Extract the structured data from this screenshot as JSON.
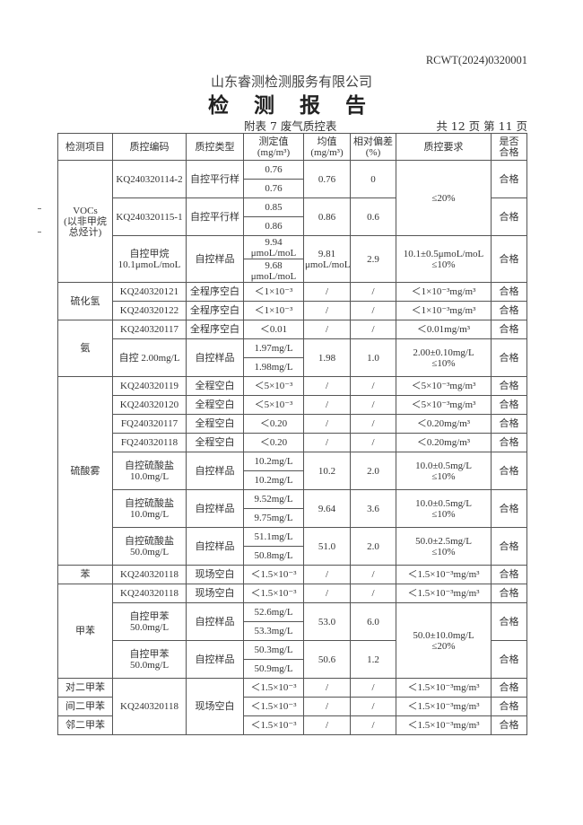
{
  "header": {
    "doc_number": "RCWT(2024)0320001",
    "company": "山东睿测检测服务有限公司",
    "title": "检 测 报 告",
    "subtitle": "附表 7  废气质控表",
    "page_info": "共 12 页    第 11 页"
  },
  "table": {
    "columns": [
      "检测项目",
      "质控编码",
      "质控类型",
      "测定值\n(mg/m³)",
      "均值\n(mg/m³)",
      "相对偏差\n(%)",
      "质控要求",
      "是否\n合格"
    ],
    "rows": [
      [
        {
          "t": "VOCs\n(以非甲烷\n总烃计)",
          "rs": 6
        },
        {
          "t": "KQ240320114-2",
          "rs": 2
        },
        {
          "t": "自控平行样",
          "rs": 2
        },
        {
          "t": "0.76"
        },
        {
          "t": "0.76",
          "rs": 2
        },
        {
          "t": "0",
          "rs": 2
        },
        {
          "t": "≤20%",
          "rs": 4
        },
        {
          "t": "合格",
          "rs": 2
        }
      ],
      [
        {
          "t": "0.76"
        }
      ],
      [
        {
          "t": "KQ240320115-1",
          "rs": 2
        },
        {
          "t": "自控平行样",
          "rs": 2
        },
        {
          "t": "0.85"
        },
        {
          "t": "0.86",
          "rs": 2
        },
        {
          "t": "0.6",
          "rs": 2
        },
        {
          "t": "合格",
          "rs": 2
        }
      ],
      [
        {
          "t": "0.86"
        }
      ],
      [
        {
          "t": "自控甲烷\n10.1μmoL/moL",
          "rs": 2
        },
        {
          "t": "自控样品",
          "rs": 2
        },
        {
          "t": "9.94\nμmoL/moL"
        },
        {
          "t": "9.81\nμmoL/moL",
          "rs": 2
        },
        {
          "t": "2.9",
          "rs": 2
        },
        {
          "t": "10.1±0.5μmoL/moL\n≤10%",
          "rs": 2
        },
        {
          "t": "合格",
          "rs": 2
        }
      ],
      [
        {
          "t": "9.68\nμmoL/moL"
        }
      ],
      [
        {
          "t": "硫化氢",
          "rs": 2
        },
        {
          "t": "KQ240320121"
        },
        {
          "t": "全程序空白"
        },
        {
          "t": "＜1×10⁻³"
        },
        {
          "t": "/"
        },
        {
          "t": "/"
        },
        {
          "t": "＜1×10⁻³mg/m³"
        },
        {
          "t": "合格"
        }
      ],
      [
        {
          "t": "KQ240320122"
        },
        {
          "t": "全程序空白"
        },
        {
          "t": "＜1×10⁻³"
        },
        {
          "t": "/"
        },
        {
          "t": "/"
        },
        {
          "t": "＜1×10⁻³mg/m³"
        },
        {
          "t": "合格"
        }
      ],
      [
        {
          "t": "氨",
          "rs": 3
        },
        {
          "t": "KQ240320117"
        },
        {
          "t": "全程序空白"
        },
        {
          "t": "＜0.01"
        },
        {
          "t": "/"
        },
        {
          "t": "/"
        },
        {
          "t": "＜0.01mg/m³"
        },
        {
          "t": "合格"
        }
      ],
      [
        {
          "t": "自控 2.00mg/L",
          "rs": 2
        },
        {
          "t": "自控样品",
          "rs": 2
        },
        {
          "t": "1.97mg/L"
        },
        {
          "t": "1.98",
          "rs": 2
        },
        {
          "t": "1.0",
          "rs": 2
        },
        {
          "t": "2.00±0.10mg/L\n≤10%",
          "rs": 2
        },
        {
          "t": "合格",
          "rs": 2
        }
      ],
      [
        {
          "t": "1.98mg/L"
        }
      ],
      [
        {
          "t": "硫酸雾",
          "rs": 10
        },
        {
          "t": "KQ240320119"
        },
        {
          "t": "全程空白"
        },
        {
          "t": "＜5×10⁻³"
        },
        {
          "t": "/"
        },
        {
          "t": "/"
        },
        {
          "t": "＜5×10⁻³mg/m³"
        },
        {
          "t": "合格"
        }
      ],
      [
        {
          "t": "KQ240320120"
        },
        {
          "t": "全程空白"
        },
        {
          "t": "＜5×10⁻³"
        },
        {
          "t": "/"
        },
        {
          "t": "/"
        },
        {
          "t": "＜5×10⁻³mg/m³"
        },
        {
          "t": "合格"
        }
      ],
      [
        {
          "t": "FQ240320117"
        },
        {
          "t": "全程空白"
        },
        {
          "t": "＜0.20"
        },
        {
          "t": "/"
        },
        {
          "t": "/"
        },
        {
          "t": "＜0.20mg/m³"
        },
        {
          "t": "合格"
        }
      ],
      [
        {
          "t": "FQ240320118"
        },
        {
          "t": "全程空白"
        },
        {
          "t": "＜0.20"
        },
        {
          "t": "/"
        },
        {
          "t": "/"
        },
        {
          "t": "＜0.20mg/m³"
        },
        {
          "t": "合格"
        }
      ],
      [
        {
          "t": "自控硫酸盐\n10.0mg/L",
          "rs": 2
        },
        {
          "t": "自控样品",
          "rs": 2
        },
        {
          "t": "10.2mg/L"
        },
        {
          "t": "10.2",
          "rs": 2
        },
        {
          "t": "2.0",
          "rs": 2
        },
        {
          "t": "10.0±0.5mg/L\n≤10%",
          "rs": 2
        },
        {
          "t": "合格",
          "rs": 2
        }
      ],
      [
        {
          "t": "10.2mg/L"
        }
      ],
      [
        {
          "t": "自控硫酸盐\n10.0mg/L",
          "rs": 2
        },
        {
          "t": "自控样品",
          "rs": 2
        },
        {
          "t": "9.52mg/L"
        },
        {
          "t": "9.64",
          "rs": 2
        },
        {
          "t": "3.6",
          "rs": 2
        },
        {
          "t": "10.0±0.5mg/L\n≤10%",
          "rs": 2
        },
        {
          "t": "合格",
          "rs": 2
        }
      ],
      [
        {
          "t": "9.75mg/L"
        }
      ],
      [
        {
          "t": "自控硫酸盐\n50.0mg/L",
          "rs": 2
        },
        {
          "t": "自控样品",
          "rs": 2
        },
        {
          "t": "51.1mg/L"
        },
        {
          "t": "51.0",
          "rs": 2
        },
        {
          "t": "2.0",
          "rs": 2
        },
        {
          "t": "50.0±2.5mg/L\n≤10%",
          "rs": 2
        },
        {
          "t": "合格",
          "rs": 2
        }
      ],
      [
        {
          "t": "50.8mg/L"
        }
      ],
      [
        {
          "t": "苯"
        },
        {
          "t": "KQ240320118"
        },
        {
          "t": "现场空白"
        },
        {
          "t": "＜1.5×10⁻³"
        },
        {
          "t": "/"
        },
        {
          "t": "/"
        },
        {
          "t": "＜1.5×10⁻³mg/m³"
        },
        {
          "t": "合格"
        }
      ],
      [
        {
          "t": "甲苯",
          "rs": 5
        },
        {
          "t": "KQ240320118"
        },
        {
          "t": "现场空白"
        },
        {
          "t": "＜1.5×10⁻³"
        },
        {
          "t": "/"
        },
        {
          "t": "/"
        },
        {
          "t": "＜1.5×10⁻³mg/m³"
        },
        {
          "t": "合格"
        }
      ],
      [
        {
          "t": "自控甲苯\n50.0mg/L",
          "rs": 2
        },
        {
          "t": "自控样品",
          "rs": 2
        },
        {
          "t": "52.6mg/L"
        },
        {
          "t": "53.0",
          "rs": 2
        },
        {
          "t": "6.0",
          "rs": 2
        },
        {
          "t": "50.0±10.0mg/L\n≤20%",
          "rs": 4
        },
        {
          "t": "合格",
          "rs": 2
        }
      ],
      [
        {
          "t": "53.3mg/L"
        }
      ],
      [
        {
          "t": "自控甲苯\n50.0mg/L",
          "rs": 2
        },
        {
          "t": "自控样品",
          "rs": 2
        },
        {
          "t": "50.3mg/L"
        },
        {
          "t": "50.6",
          "rs": 2
        },
        {
          "t": "1.2",
          "rs": 2
        },
        {
          "t": "合格",
          "rs": 2
        }
      ],
      [
        {
          "t": "50.9mg/L"
        }
      ],
      [
        {
          "t": "对二甲苯"
        },
        {
          "t": "KQ240320118",
          "rs": 3
        },
        {
          "t": "现场空白",
          "rs": 3
        },
        {
          "t": "＜1.5×10⁻³"
        },
        {
          "t": "/"
        },
        {
          "t": "/"
        },
        {
          "t": "＜1.5×10⁻³mg/m³"
        },
        {
          "t": "合格"
        }
      ],
      [
        {
          "t": "间二甲苯"
        },
        {
          "t": "＜1.5×10⁻³"
        },
        {
          "t": "/"
        },
        {
          "t": "/"
        },
        {
          "t": "＜1.5×10⁻³mg/m³"
        },
        {
          "t": "合格"
        }
      ],
      [
        {
          "t": "邻二甲苯"
        },
        {
          "t": "＜1.5×10⁻³"
        },
        {
          "t": "/"
        },
        {
          "t": "/"
        },
        {
          "t": "＜1.5×10⁻³mg/m³"
        },
        {
          "t": "合格"
        }
      ]
    ]
  }
}
